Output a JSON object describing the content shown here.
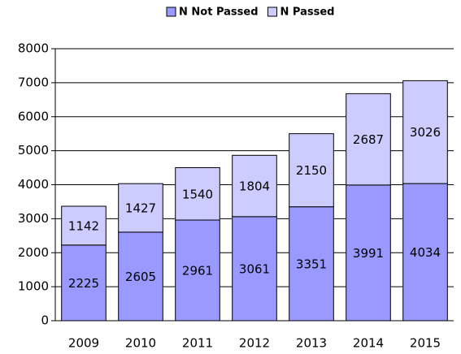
{
  "chart_data": {
    "type": "stacked_bar",
    "categories": [
      "2009",
      "2010",
      "2011",
      "2012",
      "2013",
      "2014",
      "2015"
    ],
    "series": [
      {
        "name": "N Not Passed",
        "color": "#9999ff",
        "values": [
          2225,
          2605,
          2961,
          3061,
          3351,
          3991,
          4034
        ]
      },
      {
        "name": "N Passed",
        "color": "#ccccff",
        "values": [
          1142,
          1427,
          1540,
          1804,
          2150,
          2687,
          3026
        ]
      }
    ],
    "ylim": [
      0,
      8000
    ],
    "yticks": [
      0,
      1000,
      2000,
      3000,
      4000,
      5000,
      6000,
      7000,
      8000
    ],
    "grid": true,
    "legend": "top"
  }
}
